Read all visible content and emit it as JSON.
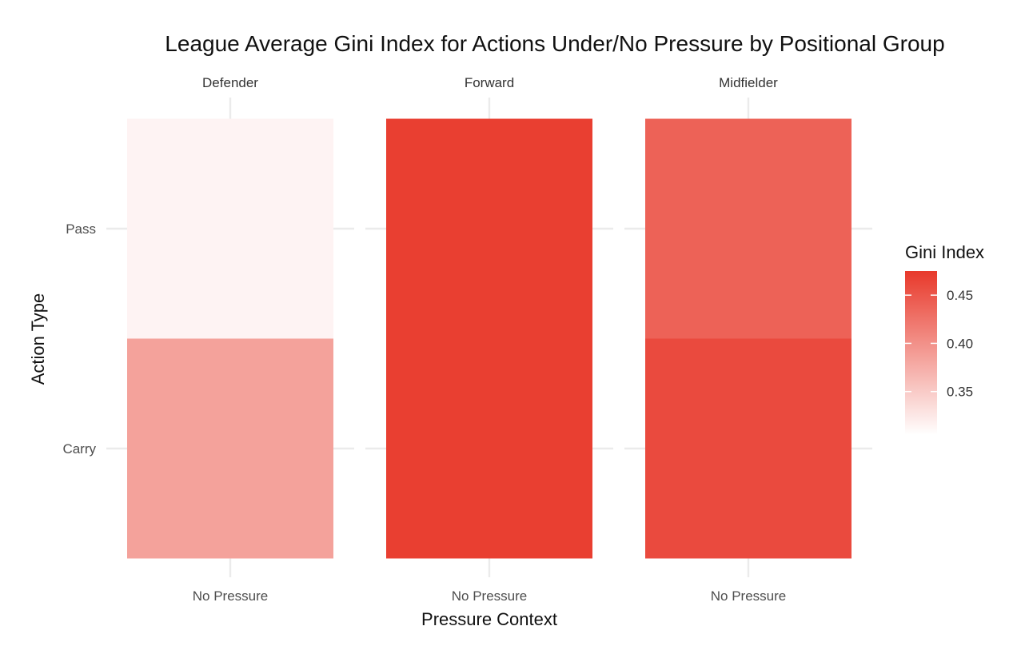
{
  "chart_data": {
    "type": "heatmap",
    "title": "League Average Gini Index for Actions Under/No Pressure by Positional Group",
    "xlabel": "Pressure Context",
    "ylabel": "Action Type",
    "facets": [
      "Defender",
      "Forward",
      "Midfielder"
    ],
    "x_categories": [
      "No Pressure"
    ],
    "y_categories": [
      "Pass",
      "Carry"
    ],
    "cells": [
      {
        "facet": "Defender",
        "x": "No Pressure",
        "y": "Pass",
        "value": 0.315
      },
      {
        "facet": "Defender",
        "x": "No Pressure",
        "y": "Carry",
        "value": 0.385
      },
      {
        "facet": "Forward",
        "x": "No Pressure",
        "y": "Pass",
        "value": 0.47
      },
      {
        "facet": "Forward",
        "x": "No Pressure",
        "y": "Carry",
        "value": 0.47
      },
      {
        "facet": "Midfielder",
        "x": "No Pressure",
        "y": "Pass",
        "value": 0.44
      },
      {
        "facet": "Midfielder",
        "x": "No Pressure",
        "y": "Carry",
        "value": 0.46
      }
    ],
    "legend": {
      "title": "Gini Index",
      "ticks": [
        0.35,
        0.4,
        0.45
      ],
      "tick_labels": [
        "0.35",
        "0.40",
        "0.45"
      ],
      "range": [
        0.305,
        0.475
      ],
      "low_color": "#ffffff",
      "high_color": "#e8392b",
      "position": "right"
    },
    "grid": true
  }
}
